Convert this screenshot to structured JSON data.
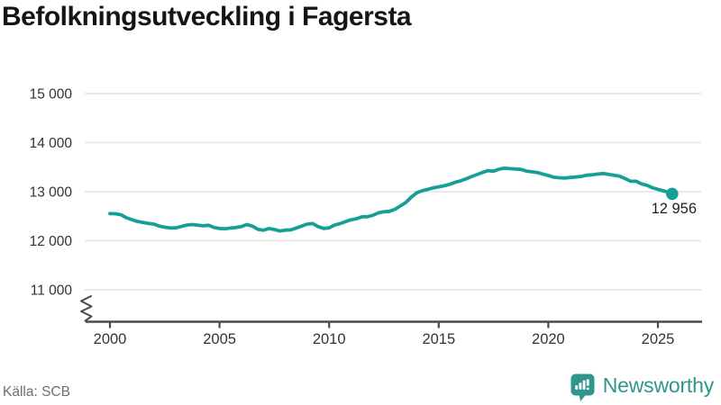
{
  "chart_data": {
    "type": "line",
    "title": "Befolkningsutveckling i Fagersta",
    "ylim": [
      11000,
      15000
    ],
    "axis_break": true,
    "grid": true,
    "legend": "none",
    "yticks": [
      15000,
      14000,
      13000,
      12000,
      11000
    ],
    "ytick_labels": [
      "15 000",
      "14 000",
      "13 000",
      "12 000",
      "11 000"
    ],
    "xticks": [
      2000,
      2005,
      2010,
      2015,
      2020,
      2025
    ],
    "xtick_labels": [
      "2000",
      "2005",
      "2010",
      "2015",
      "2020",
      "2025"
    ],
    "end_label": "12 956",
    "end_value": 12956,
    "x": [
      2000,
      2000.25,
      2000.5,
      2000.75,
      2001,
      2001.25,
      2001.5,
      2001.75,
      2002,
      2002.25,
      2002.5,
      2002.75,
      2003,
      2003.25,
      2003.5,
      2003.75,
      2004,
      2004.25,
      2004.5,
      2004.75,
      2005,
      2005.25,
      2005.5,
      2005.75,
      2006,
      2006.25,
      2006.5,
      2006.75,
      2007,
      2007.25,
      2007.5,
      2007.75,
      2008,
      2008.25,
      2008.5,
      2008.75,
      2009,
      2009.25,
      2009.5,
      2009.75,
      2010,
      2010.25,
      2010.5,
      2010.75,
      2011,
      2011.25,
      2011.5,
      2011.75,
      2012,
      2012.25,
      2012.5,
      2012.75,
      2013,
      2013.25,
      2013.5,
      2013.75,
      2014,
      2014.25,
      2014.5,
      2014.75,
      2015,
      2015.25,
      2015.5,
      2015.75,
      2016,
      2016.25,
      2016.5,
      2016.75,
      2017,
      2017.25,
      2017.5,
      2017.75,
      2018,
      2018.25,
      2018.5,
      2018.75,
      2019,
      2019.25,
      2019.5,
      2019.75,
      2020,
      2020.25,
      2020.5,
      2020.75,
      2021,
      2021.25,
      2021.5,
      2021.75,
      2022,
      2022.25,
      2022.5,
      2022.75,
      2023,
      2023.25,
      2023.5,
      2023.75,
      2024,
      2024.25,
      2024.5,
      2024.75,
      2025,
      2025.25,
      2025.5,
      2025.65
    ],
    "values": [
      12555,
      12550,
      12530,
      12470,
      12430,
      12395,
      12375,
      12355,
      12340,
      12300,
      12275,
      12260,
      12262,
      12290,
      12320,
      12330,
      12318,
      12305,
      12315,
      12270,
      12250,
      12245,
      12258,
      12270,
      12290,
      12330,
      12298,
      12232,
      12215,
      12250,
      12230,
      12200,
      12216,
      12222,
      12258,
      12300,
      12340,
      12350,
      12288,
      12252,
      12262,
      12320,
      12350,
      12390,
      12428,
      12450,
      12488,
      12490,
      12520,
      12568,
      12590,
      12600,
      12640,
      12710,
      12780,
      12890,
      12980,
      13020,
      13048,
      13078,
      13100,
      13122,
      13150,
      13190,
      13222,
      13262,
      13310,
      13350,
      13392,
      13430,
      13418,
      13458,
      13478,
      13470,
      13462,
      13455,
      13420,
      13405,
      13390,
      13360,
      13330,
      13295,
      13285,
      13278,
      13290,
      13300,
      13312,
      13335,
      13345,
      13360,
      13370,
      13355,
      13335,
      13315,
      13268,
      13215,
      13212,
      13160,
      13130,
      13080,
      13048,
      13018,
      12985,
      12956
    ]
  },
  "footer": {
    "source": "Källa: SCB",
    "logo_text": "Newsworthy"
  },
  "icons": {
    "logo": "bar-chart-speech-bubble-icon"
  },
  "colors": {
    "line": "#16a095",
    "grid": "#e3e3e3",
    "axis": "#4a4a4a",
    "tick_text": "#333333",
    "title_text": "#151515",
    "annotation_text": "#222222",
    "source_text": "#6f6f6f",
    "logo": "#2f958d"
  }
}
